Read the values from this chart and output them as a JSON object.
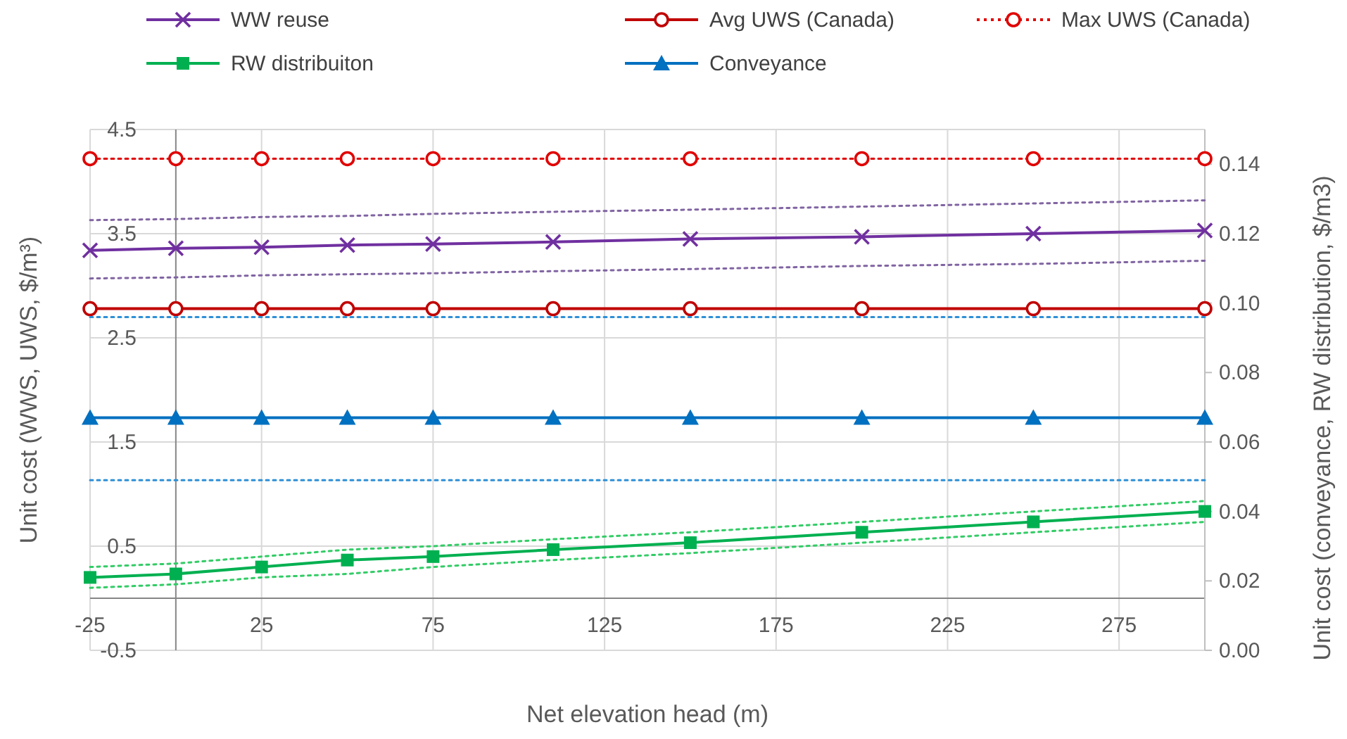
{
  "chart_data": {
    "type": "line",
    "xlabel": "Net elevation head (m)",
    "ylabel": "Unit cost (WWS, UWS,  $/m³)",
    "y2label": "Unit cost (conveyance, RW distribution, $/m3)",
    "x": [
      -25,
      0,
      25,
      50,
      75,
      110,
      150,
      200,
      250,
      300
    ],
    "xlim": [
      -25,
      300
    ],
    "xticks": [
      -25,
      25,
      75,
      125,
      175,
      225,
      275
    ],
    "ylim": [
      -0.5,
      4.5
    ],
    "yticks": [
      -0.5,
      0.5,
      1.5,
      2.5,
      3.5,
      4.5
    ],
    "y2lim": [
      0,
      0.15
    ],
    "y2ticks": [
      {
        "value": 0,
        "label": "0.00"
      },
      {
        "value": 0.02,
        "label": "0.02"
      },
      {
        "value": 0.04,
        "label": "0.04"
      },
      {
        "value": 0.06,
        "label": "0.06"
      },
      {
        "value": 0.08,
        "label": "0.08"
      },
      {
        "value": 0.1,
        "label": "0.10"
      },
      {
        "value": 0.12,
        "label": "0.12"
      },
      {
        "value": 0.14,
        "label": "0.14"
      }
    ],
    "grid": true,
    "legend": "top",
    "series": [
      {
        "name": "WW reuse",
        "color": "#7030a0",
        "marker": "cross",
        "line_style": "solid",
        "values": [
          3.34,
          3.36,
          3.37,
          3.39,
          3.4,
          3.42,
          3.45,
          3.47,
          3.5,
          3.53
        ]
      },
      {
        "name": "Avg UWS (Canada)",
        "color": "#c00000",
        "marker": "circle",
        "line_style": "solid",
        "values": [
          2.78,
          2.78,
          2.78,
          2.78,
          2.78,
          2.78,
          2.78,
          2.78,
          2.78,
          2.78
        ]
      },
      {
        "name": "Max UWS (Canada)",
        "color": "#e00000",
        "marker": "circle",
        "line_style": "dotted",
        "values": [
          4.22,
          4.22,
          4.22,
          4.22,
          4.22,
          4.22,
          4.22,
          4.22,
          4.22,
          4.22
        ]
      },
      {
        "name": "RW distribuiton",
        "color": "#00b050",
        "marker": "square",
        "line_style": "solid",
        "axis": "y2",
        "values": [
          0.021,
          0.022,
          0.024,
          0.026,
          0.027,
          0.029,
          0.031,
          0.034,
          0.037,
          0.04
        ]
      },
      {
        "name": "Conveyance",
        "color": "#0070c0",
        "marker": "triangle",
        "line_style": "solid",
        "axis": "y2",
        "values": [
          0.067,
          0.067,
          0.067,
          0.067,
          0.067,
          0.067,
          0.067,
          0.067,
          0.067,
          0.067
        ]
      },
      {
        "color": "#8064a2",
        "marker": "none",
        "line_style": "dotted",
        "values": [
          3.63,
          3.64,
          3.66,
          3.67,
          3.69,
          3.71,
          3.73,
          3.76,
          3.79,
          3.82
        ]
      },
      {
        "color": "#8064a2",
        "marker": "none",
        "line_style": "dotted",
        "values": [
          3.07,
          3.08,
          3.1,
          3.11,
          3.12,
          3.14,
          3.16,
          3.19,
          3.21,
          3.24
        ]
      },
      {
        "color": "#33cc66",
        "marker": "none",
        "line_style": "dotted",
        "axis": "y2",
        "values": [
          0.024,
          0.025,
          0.027,
          0.029,
          0.03,
          0.032,
          0.034,
          0.037,
          0.04,
          0.043
        ]
      },
      {
        "color": "#33cc66",
        "marker": "none",
        "line_style": "dotted",
        "axis": "y2",
        "values": [
          0.018,
          0.019,
          0.021,
          0.022,
          0.024,
          0.026,
          0.028,
          0.031,
          0.034,
          0.037
        ]
      },
      {
        "color": "#2e8fd6",
        "marker": "none",
        "line_style": "dotted",
        "axis": "y2",
        "values": [
          0.096,
          0.096,
          0.096,
          0.096,
          0.096,
          0.096,
          0.096,
          0.096,
          0.096,
          0.096
        ]
      },
      {
        "color": "#2e8fd6",
        "marker": "none",
        "line_style": "dotted",
        "axis": "y2",
        "values": [
          0.049,
          0.049,
          0.049,
          0.049,
          0.049,
          0.049,
          0.049,
          0.049,
          0.049,
          0.049
        ]
      }
    ]
  }
}
